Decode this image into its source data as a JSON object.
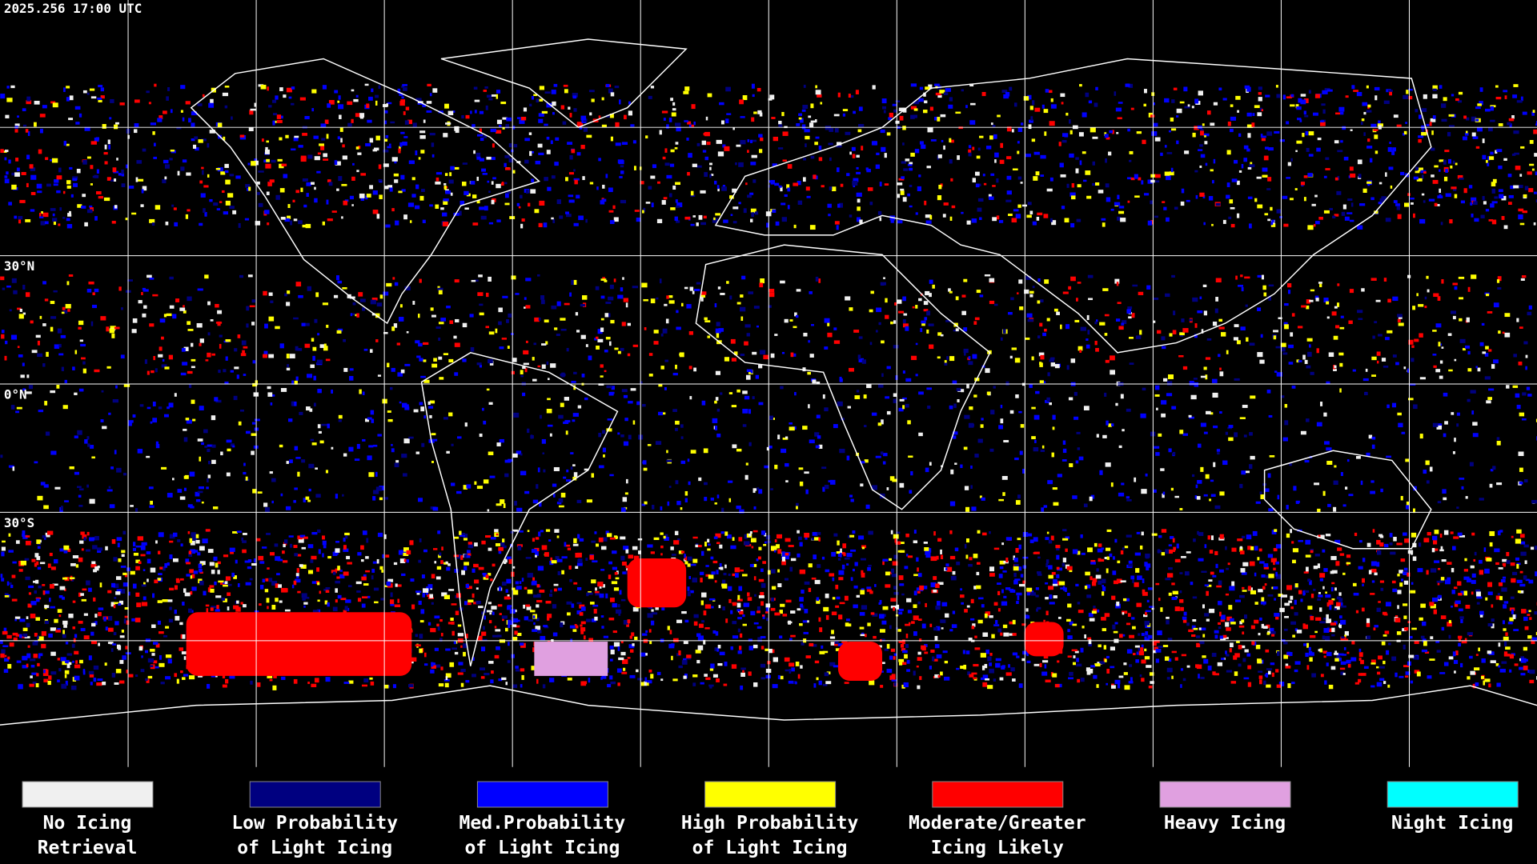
{
  "header": {
    "timestamp": "2025.256 17:00 UTC"
  },
  "map": {
    "latitude_labels": [
      "30°N",
      "0°N",
      "30°S"
    ]
  },
  "legend": {
    "items": [
      {
        "lines": [
          "No Icing",
          "Retrieval"
        ],
        "color": "#f0f0f0"
      },
      {
        "lines": [
          "Low Probability",
          "of Light Icing"
        ],
        "color": "#000080"
      },
      {
        "lines": [
          "Med.Probability",
          "of Light Icing"
        ],
        "color": "#0000ff"
      },
      {
        "lines": [
          "High Probability",
          "of Light Icing"
        ],
        "color": "#ffff00"
      },
      {
        "lines": [
          "Moderate/Greater",
          "Icing Likely"
        ],
        "color": "#ff0000"
      },
      {
        "lines": [
          "Heavy Icing"
        ],
        "color": "#e0a0e0"
      },
      {
        "lines": [
          "Night Icing"
        ],
        "color": "#00ffff"
      }
    ]
  }
}
